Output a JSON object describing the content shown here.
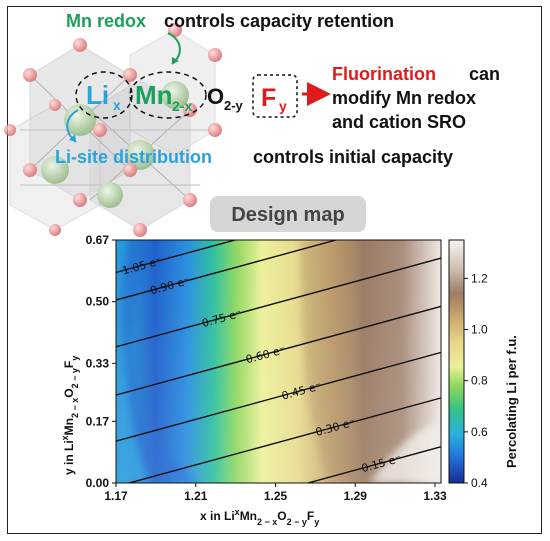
{
  "header": {
    "mn_redox": "Mn redox",
    "mn_redox_rest": "controls capacity retention",
    "formula_li": "Li",
    "formula_li_sub": "x",
    "formula_mn": "Mn",
    "formula_mn_sub": "2-x",
    "formula_o": "O",
    "formula_o_sub": "2-y",
    "formula_f": "F",
    "formula_f_sub": "y",
    "fluorination": "Fluorination",
    "fluorination_rest_1": "can",
    "fluorination_rest_2": "modify Mn redox",
    "fluorination_rest_3": "and cation SRO",
    "li_site": "Li-site distribution",
    "li_site_rest": "controls initial capacity",
    "badge": "Design map"
  },
  "colors": {
    "green": "#1aa05a",
    "blue": "#2aa3dc",
    "red": "#e01b1b",
    "badge_bg": "#d6d6d6"
  },
  "chart_data": {
    "type": "heatmap",
    "title": "",
    "xlabel": "x in Li$_x$Mn$_{2-x}$O$_{2-y}$F$_y$",
    "ylabel": "y in Li$_x$Mn$_{2-x}$O$_{2-y}$F$_y$",
    "xlabel_parts": [
      "x in Li",
      "x",
      "Mn",
      "2 − x",
      "O",
      "2 − y",
      "F",
      "y"
    ],
    "ylabel_parts": [
      "y in Li",
      "x",
      "Mn",
      "2 − x",
      "O",
      "2 − y",
      "F",
      "y"
    ],
    "xlim": [
      1.17,
      1.333
    ],
    "ylim": [
      0.0,
      0.67
    ],
    "xticks": [
      "1.17",
      "1.21",
      "1.25",
      "1.29",
      "1.33"
    ],
    "xtick_values": [
      1.17,
      1.21,
      1.25,
      1.29,
      1.33
    ],
    "yticks": [
      "0.00",
      "0.17",
      "0.33",
      "0.50",
      "0.67"
    ],
    "ytick_values": [
      0.0,
      0.17,
      0.33,
      0.5,
      0.67
    ],
    "colorbar": {
      "label": "Percolating Li per f.u.",
      "range": [
        0.4,
        1.35
      ],
      "ticks": [
        "0.4",
        "0.6",
        "0.8",
        "1.0",
        "1.2"
      ],
      "tick_values": [
        0.4,
        0.6,
        0.8,
        1.0,
        1.2
      ]
    },
    "contour_lines": [
      {
        "label": "1.05 e⁻",
        "value": 1.05
      },
      {
        "label": "0.90 e⁻",
        "value": 0.9
      },
      {
        "label": "0.75 e⁻",
        "value": 0.75
      },
      {
        "label": "0.60 e⁻",
        "value": 0.6
      },
      {
        "label": "0.45 e⁻",
        "value": 0.45
      },
      {
        "label": "0.30 e⁻",
        "value": 0.3
      },
      {
        "label": "0.15 e⁻",
        "value": 0.15
      }
    ],
    "contour_label_points": [
      {
        "x": 1.183,
        "y": 0.6
      },
      {
        "x": 1.197,
        "y": 0.545
      },
      {
        "x": 1.223,
        "y": 0.455
      },
      {
        "x": 1.245,
        "y": 0.355
      },
      {
        "x": 1.263,
        "y": 0.255
      },
      {
        "x": 1.28,
        "y": 0.155
      },
      {
        "x": 1.303,
        "y": 0.055
      }
    ]
  }
}
